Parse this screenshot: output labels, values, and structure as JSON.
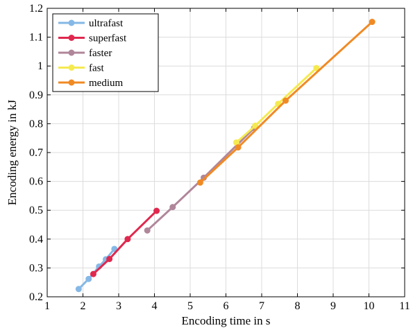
{
  "chart_data": {
    "type": "line",
    "title": "",
    "xlabel": "Encoding time in s",
    "ylabel": "Encoding energy in kJ",
    "xlim": [
      1,
      11
    ],
    "ylim": [
      0.2,
      1.2
    ],
    "xticks": [
      "1",
      "2",
      "3",
      "4",
      "5",
      "6",
      "7",
      "8",
      "9",
      "10",
      "11"
    ],
    "yticks": [
      "0.2",
      "0.3",
      "0.4",
      "0.5",
      "0.6",
      "0.7",
      "0.8",
      "0.9",
      "1",
      "1.1",
      "1.2"
    ],
    "grid": true,
    "legend_position": "top-left",
    "series": [
      {
        "name": "ultrafast",
        "color": "#85b8e6",
        "points": [
          [
            1.88,
            0.227
          ],
          [
            2.16,
            0.262
          ],
          [
            2.45,
            0.305
          ],
          [
            2.64,
            0.33
          ],
          [
            2.88,
            0.366
          ]
        ]
      },
      {
        "name": "superfast",
        "color": "#e0284e",
        "points": [
          [
            2.29,
            0.279
          ],
          [
            2.74,
            0.331
          ],
          [
            3.25,
            0.4
          ],
          [
            4.06,
            0.498
          ]
        ]
      },
      {
        "name": "faster",
        "color": "#b0869a",
        "points": [
          [
            3.8,
            0.43
          ],
          [
            4.51,
            0.511
          ],
          [
            5.38,
            0.613
          ],
          [
            6.79,
            0.785
          ]
        ]
      },
      {
        "name": "fast",
        "color": "#f5ea50",
        "points": [
          [
            6.29,
            0.735
          ],
          [
            6.82,
            0.793
          ],
          [
            7.46,
            0.869
          ],
          [
            8.53,
            0.993
          ]
        ]
      },
      {
        "name": "medium",
        "color": "#f08a24",
        "points": [
          [
            5.28,
            0.596
          ],
          [
            6.34,
            0.718
          ],
          [
            7.67,
            0.88
          ],
          [
            10.09,
            1.153
          ]
        ]
      }
    ]
  }
}
